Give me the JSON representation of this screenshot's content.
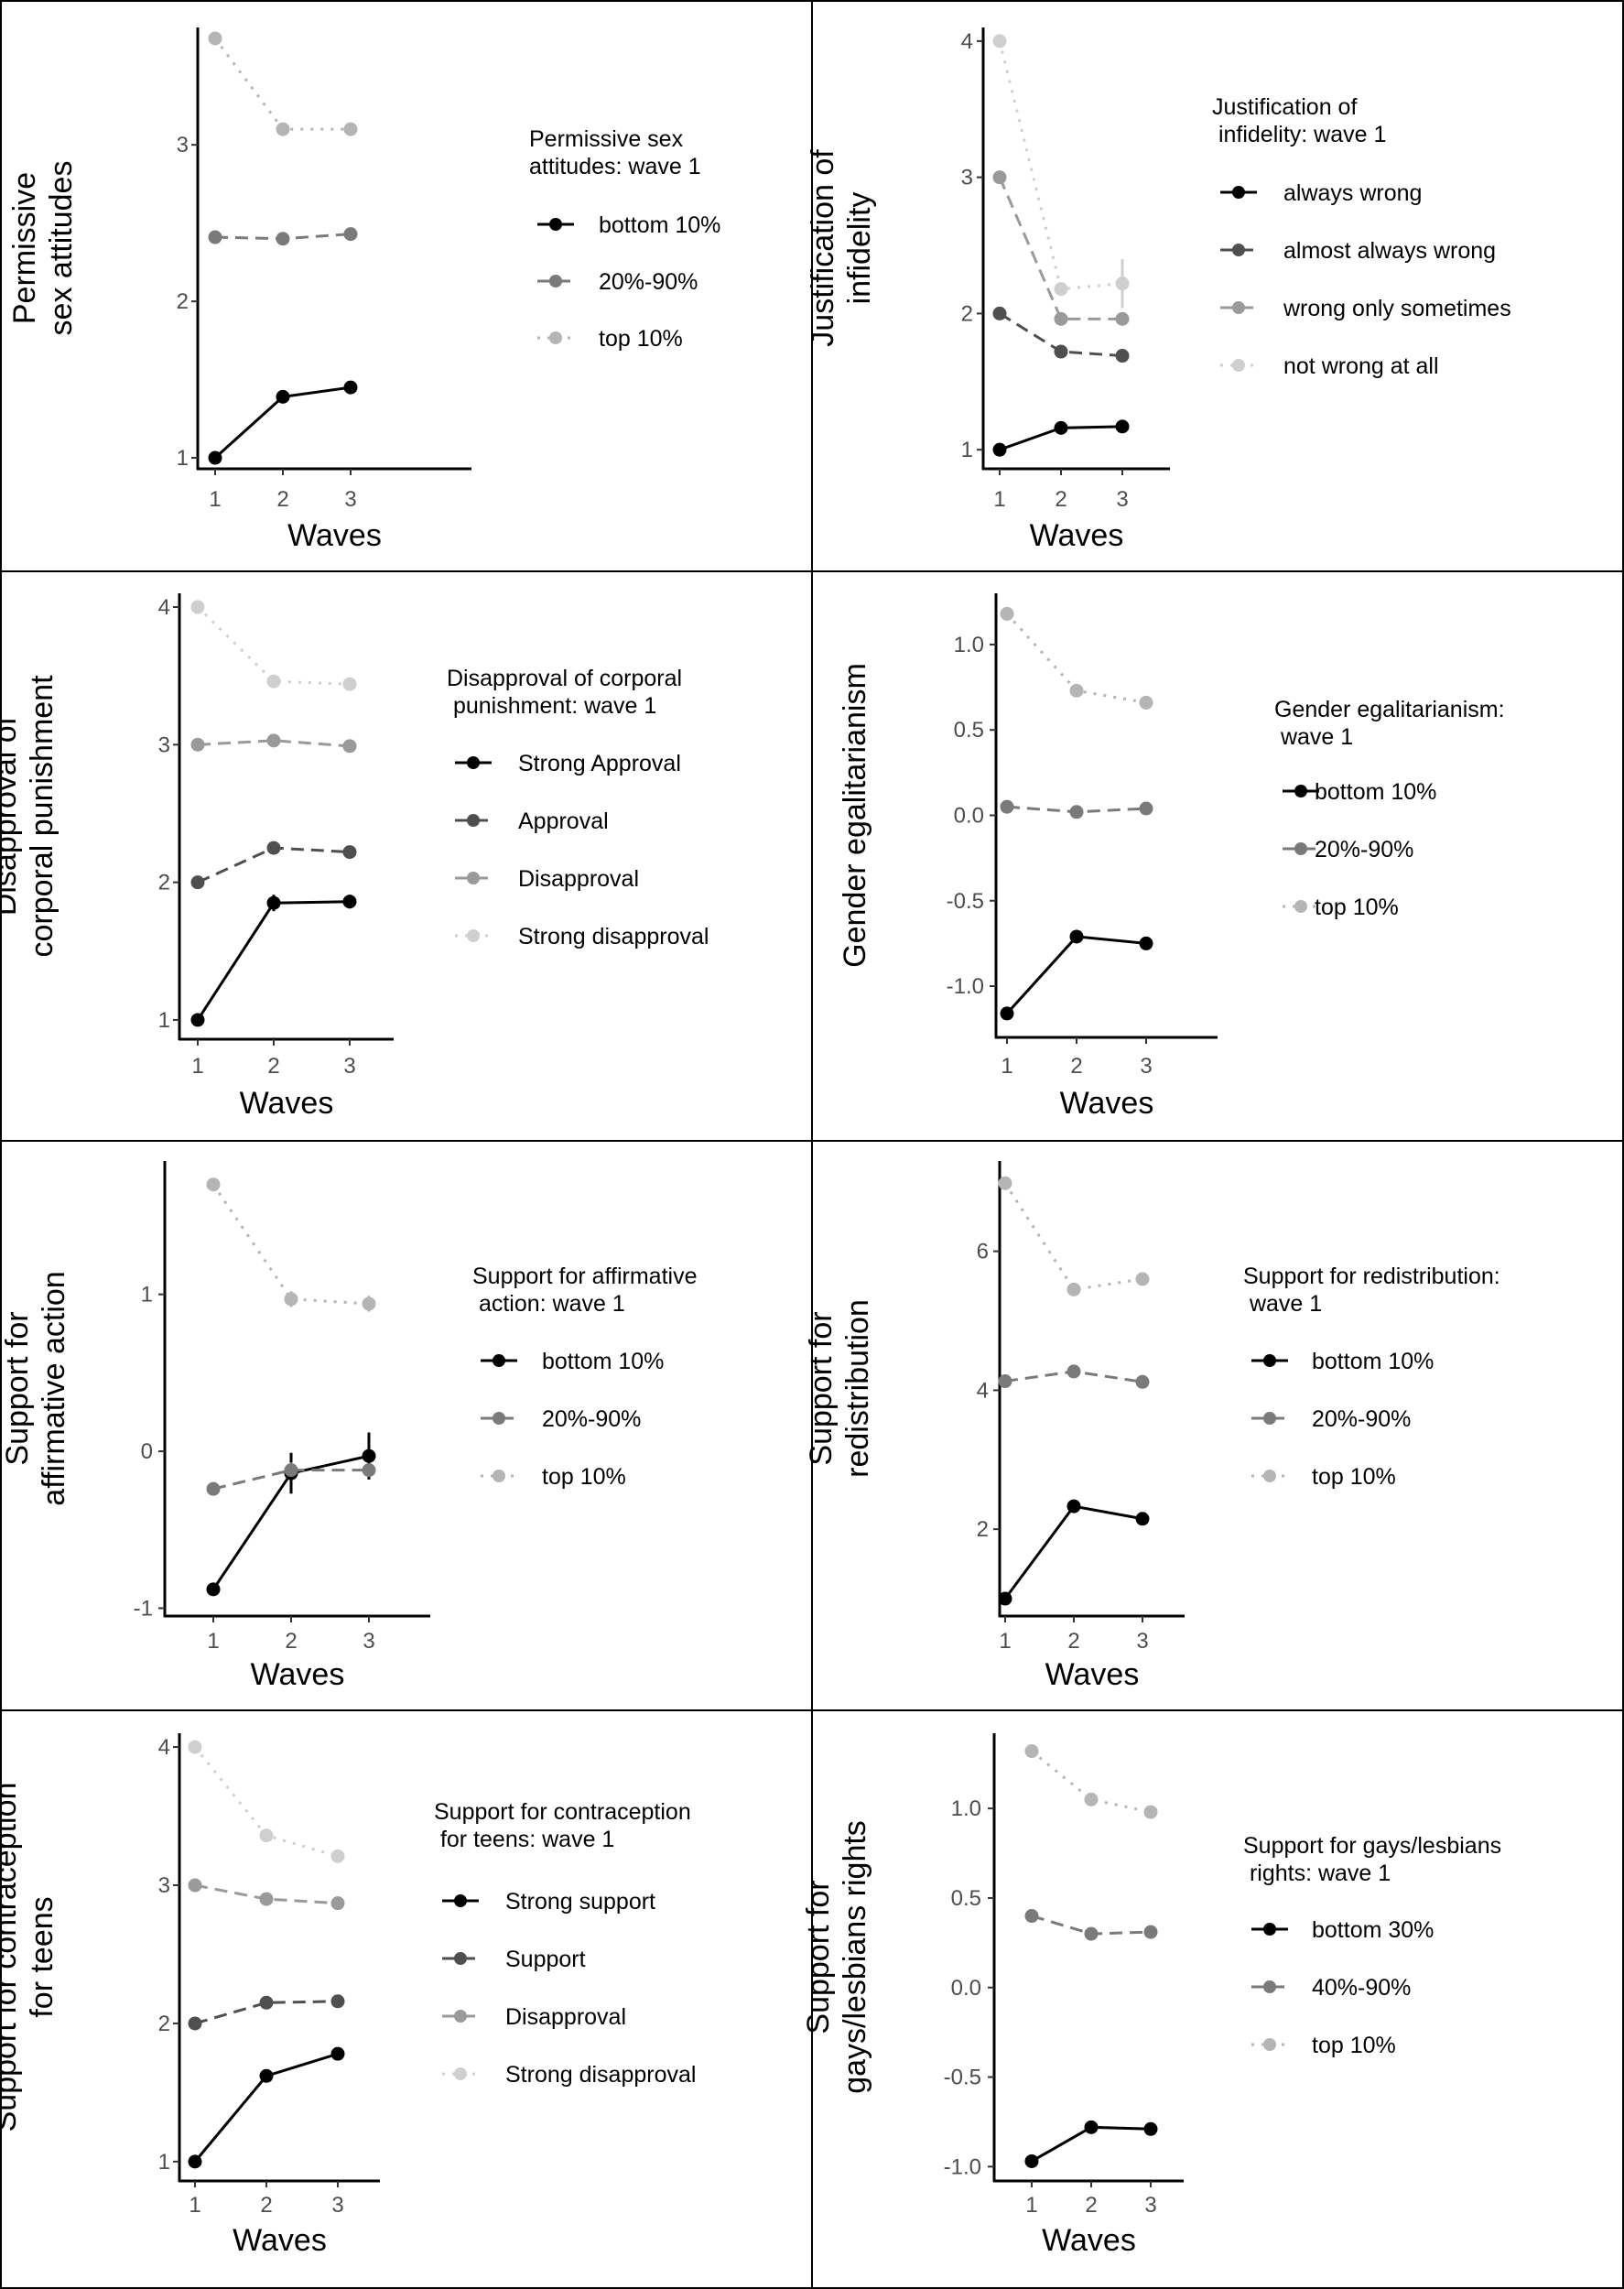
{
  "chart_data": [
    {
      "type": "line",
      "ylabel": [
        "Permissive",
        "sex attitudes"
      ],
      "xlabel": "Waves",
      "x": [
        1,
        2,
        3
      ],
      "xticks": [
        "1",
        "2",
        "3"
      ],
      "ylim": [
        0.93,
        3.75
      ],
      "yticks": [
        1,
        2,
        3
      ],
      "ytick_labels": [
        "1",
        "2",
        "3"
      ],
      "legend_title": [
        "Permissive sex",
        "attitudes: wave 1"
      ],
      "series": [
        {
          "name": "bottom 10%",
          "values": [
            1.0,
            1.39,
            1.45
          ]
        },
        {
          "name": "20%-90%",
          "values": [
            2.41,
            2.4,
            2.43
          ]
        },
        {
          "name": "top 10%",
          "values": [
            3.68,
            3.1,
            3.1
          ]
        }
      ]
    },
    {
      "type": "line",
      "ylabel": [
        "Justification of",
        "infidelity"
      ],
      "xlabel": "Waves",
      "x": [
        1,
        2,
        3
      ],
      "xticks": [
        "1",
        "2",
        "3"
      ],
      "ylim": [
        0.86,
        4.1
      ],
      "yticks": [
        1,
        2,
        3,
        4
      ],
      "ytick_labels": [
        "1",
        "2",
        "3",
        "4"
      ],
      "legend_title": [
        "Justification of",
        " infidelity: wave 1"
      ],
      "series": [
        {
          "name": "always wrong",
          "values": [
            1.0,
            1.16,
            1.17
          ]
        },
        {
          "name": "almost always wrong",
          "values": [
            2.0,
            1.72,
            1.69
          ]
        },
        {
          "name": "wrong only sometimes",
          "values": [
            3.0,
            1.96,
            1.96
          ]
        },
        {
          "name": "not wrong at all",
          "values": [
            4.0,
            2.18,
            2.22
          ]
        }
      ]
    },
    {
      "type": "line",
      "ylabel": [
        "Disapproval of",
        "corporal punishment"
      ],
      "xlabel": "Waves",
      "x": [
        1,
        2,
        3
      ],
      "xticks": [
        "1",
        "2",
        "3"
      ],
      "ylim": [
        0.86,
        4.1
      ],
      "yticks": [
        1,
        2,
        3,
        4
      ],
      "ytick_labels": [
        "1",
        "2",
        "3",
        "4"
      ],
      "legend_title": [
        "Disapproval of corporal",
        " punishment: wave 1"
      ],
      "series": [
        {
          "name": "Strong Approval",
          "values": [
            1.0,
            1.85,
            1.86
          ]
        },
        {
          "name": "Approval",
          "values": [
            2.0,
            2.25,
            2.22
          ]
        },
        {
          "name": "Disapproval",
          "values": [
            3.0,
            3.03,
            2.99
          ]
        },
        {
          "name": "Strong disapproval",
          "values": [
            4.0,
            3.46,
            3.44
          ]
        }
      ]
    },
    {
      "type": "line",
      "ylabel": [
        "Gender egalitarianism"
      ],
      "xlabel": "Waves",
      "x": [
        1,
        2,
        3
      ],
      "xticks": [
        "1",
        "2",
        "3"
      ],
      "ylim": [
        -1.3,
        1.3
      ],
      "yticks": [
        -1.0,
        -0.5,
        0.0,
        0.5,
        1.0
      ],
      "ytick_labels": [
        "-1.0",
        "-0.5",
        "0.0",
        "0.5",
        "1.0"
      ],
      "legend_title": [
        "Gender egalitarianism:",
        " wave 1"
      ],
      "series": [
        {
          "name": "bottom 10%",
          "values": [
            -1.16,
            -0.71,
            -0.75
          ]
        },
        {
          "name": "20%-90%",
          "values": [
            0.05,
            0.02,
            0.04
          ]
        },
        {
          "name": "top 10%",
          "values": [
            1.18,
            0.73,
            0.66
          ]
        }
      ]
    },
    {
      "type": "line",
      "ylabel": [
        "Support for",
        "affirmative action"
      ],
      "xlabel": "Waves",
      "x": [
        1,
        2,
        3
      ],
      "xticks": [
        "1",
        "2",
        "3"
      ],
      "ylim": [
        -1.05,
        1.85
      ],
      "yticks": [
        -1,
        0,
        1
      ],
      "ytick_labels": [
        "-1",
        "0",
        "1"
      ],
      "legend_title": [
        "Support for affirmative",
        " action: wave 1"
      ],
      "series": [
        {
          "name": "bottom 10%",
          "values": [
            -0.88,
            -0.14,
            -0.03
          ]
        },
        {
          "name": "20%-90%",
          "values": [
            -0.24,
            -0.12,
            -0.12
          ]
        },
        {
          "name": "top 10%",
          "values": [
            1.7,
            0.97,
            0.94
          ]
        }
      ]
    },
    {
      "type": "line",
      "ylabel": [
        "Support for",
        "redistribution"
      ],
      "xlabel": "Waves",
      "x": [
        1,
        2,
        3
      ],
      "xticks": [
        "1",
        "2",
        "3"
      ],
      "ylim": [
        0.75,
        7.3
      ],
      "yticks": [
        2,
        4,
        6
      ],
      "ytick_labels": [
        "2",
        "4",
        "6"
      ],
      "legend_title": [
        "Support for redistribution:",
        " wave 1"
      ],
      "series": [
        {
          "name": "bottom 10%",
          "values": [
            1.0,
            2.33,
            2.15
          ]
        },
        {
          "name": "20%-90%",
          "values": [
            4.13,
            4.27,
            4.12
          ]
        },
        {
          "name": "top 10%",
          "values": [
            6.98,
            5.45,
            5.6
          ]
        }
      ]
    },
    {
      "type": "line",
      "ylabel": [
        "Support for contraception",
        "for teens"
      ],
      "xlabel": "Waves",
      "x": [
        1,
        2,
        3
      ],
      "xticks": [
        "1",
        "2",
        "3"
      ],
      "ylim": [
        0.86,
        4.1
      ],
      "yticks": [
        1,
        2,
        3,
        4
      ],
      "ytick_labels": [
        "1",
        "2",
        "3",
        "4"
      ],
      "legend_title": [
        "Support for contraception",
        " for teens: wave 1"
      ],
      "series": [
        {
          "name": "Strong support",
          "values": [
            1.0,
            1.62,
            1.78
          ]
        },
        {
          "name": "Support",
          "values": [
            2.0,
            2.15,
            2.16
          ]
        },
        {
          "name": "Disapproval",
          "values": [
            3.0,
            2.9,
            2.87
          ]
        },
        {
          "name": "Strong disapproval",
          "values": [
            4.0,
            3.36,
            3.21
          ]
        }
      ]
    },
    {
      "type": "line",
      "ylabel": [
        "Support for",
        "gays/lesbians rights"
      ],
      "xlabel": "Waves",
      "x": [
        1,
        2,
        3
      ],
      "xticks": [
        "1",
        "2",
        "3"
      ],
      "ylim": [
        -1.08,
        1.42
      ],
      "yticks": [
        -1.0,
        -0.5,
        0.0,
        0.5,
        1.0
      ],
      "ytick_labels": [
        "-1.0",
        "-0.5",
        "0.0",
        "0.5",
        "1.0"
      ],
      "legend_title": [
        "Support for gays/lesbians",
        " rights: wave 1"
      ],
      "series": [
        {
          "name": "bottom 30%",
          "values": [
            -0.97,
            -0.78,
            -0.79
          ]
        },
        {
          "name": "40%-90%",
          "values": [
            0.4,
            0.3,
            0.31
          ]
        },
        {
          "name": "top 10%",
          "values": [
            1.32,
            1.05,
            0.98
          ]
        }
      ]
    }
  ]
}
